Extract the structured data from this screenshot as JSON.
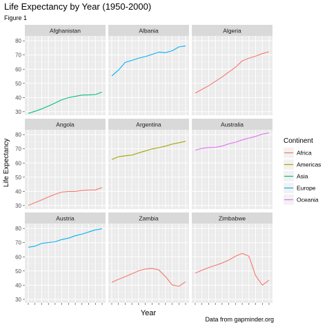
{
  "chart_data": {
    "type": "line",
    "title": "Life Expectancy by Year (1950-2000)",
    "subtitle": "Figure 1",
    "xlabel": "Year",
    "ylabel": "Life Expectancy",
    "caption": "Data from gapminder.org",
    "facet_layout": "3x3",
    "x": [
      1952,
      1957,
      1962,
      1967,
      1972,
      1977,
      1982,
      1987,
      1992,
      1997,
      2002,
      2007
    ],
    "xlim": [
      1952,
      2007
    ],
    "ylim": [
      27.5,
      83.5
    ],
    "yticks": [
      30,
      40,
      50,
      60,
      70,
      80
    ],
    "x_tick_labels_shown": false,
    "grid": true,
    "legend": {
      "title": "Continent",
      "placement": "right",
      "entries": [
        {
          "name": "Africa",
          "color": "#F8766D"
        },
        {
          "name": "Americas",
          "color": "#A3A500"
        },
        {
          "name": "Asia",
          "color": "#00BF7D"
        },
        {
          "name": "Europe",
          "color": "#00B0F6"
        },
        {
          "name": "Oceania",
          "color": "#E76BF3"
        }
      ]
    },
    "panels": [
      {
        "country": "Afghanistan",
        "continent": "Asia",
        "values": [
          28.8,
          30.3,
          32.0,
          34.0,
          36.1,
          38.4,
          39.9,
          40.8,
          41.7,
          41.8,
          42.1,
          43.8
        ]
      },
      {
        "country": "Albania",
        "continent": "Europe",
        "values": [
          55.2,
          59.3,
          64.8,
          66.2,
          67.7,
          68.9,
          70.4,
          72.0,
          71.6,
          73.0,
          75.7,
          76.4
        ]
      },
      {
        "country": "Algeria",
        "continent": "Africa",
        "values": [
          43.1,
          45.7,
          48.3,
          51.4,
          54.5,
          58.0,
          61.4,
          65.8,
          67.7,
          69.2,
          71.0,
          72.3
        ]
      },
      {
        "country": "Angola",
        "continent": "Africa",
        "values": [
          30.0,
          32.0,
          34.0,
          36.0,
          37.9,
          39.5,
          39.9,
          39.9,
          40.6,
          40.9,
          41.0,
          42.7
        ]
      },
      {
        "country": "Argentina",
        "continent": "Americas",
        "values": [
          62.5,
          64.4,
          65.1,
          65.6,
          67.1,
          68.5,
          69.9,
          70.8,
          71.9,
          73.3,
          74.3,
          75.3
        ]
      },
      {
        "country": "Australia",
        "continent": "Oceania",
        "values": [
          69.1,
          70.3,
          70.9,
          71.1,
          71.9,
          73.5,
          74.7,
          76.3,
          77.6,
          78.8,
          80.4,
          81.2
        ]
      },
      {
        "country": "Austria",
        "continent": "Europe",
        "values": [
          66.8,
          67.5,
          69.5,
          70.1,
          70.6,
          72.2,
          73.2,
          74.9,
          76.0,
          77.5,
          79.0,
          79.8
        ]
      },
      {
        "country": "Zambia",
        "continent": "Africa",
        "values": [
          42.0,
          44.1,
          46.0,
          48.0,
          50.1,
          51.4,
          51.8,
          50.8,
          46.1,
          40.2,
          39.2,
          42.4
        ]
      },
      {
        "country": "Zimbabwe",
        "continent": "Africa",
        "values": [
          48.5,
          50.5,
          52.4,
          54.0,
          55.6,
          57.7,
          60.4,
          62.4,
          60.4,
          46.8,
          40.0,
          43.5
        ]
      }
    ]
  }
}
